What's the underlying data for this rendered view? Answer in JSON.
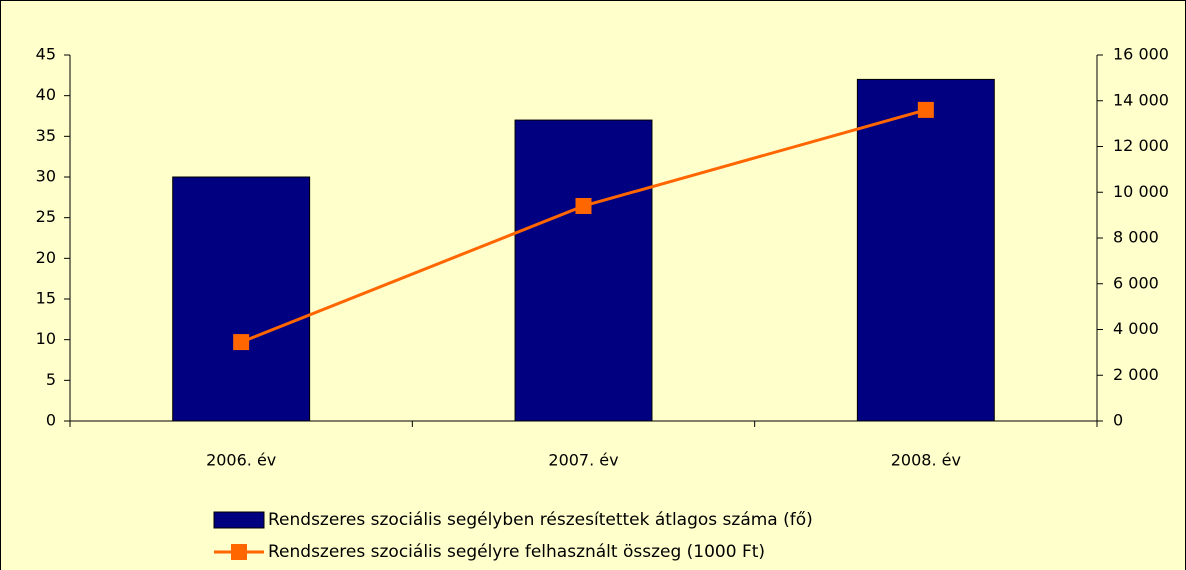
{
  "chart_data": {
    "type": "bar",
    "categories": [
      "2006. év",
      "2007. év",
      "2008. év"
    ],
    "series": [
      {
        "name": "Rendszeres szociális segélyben részesítettek átlagos száma (fő)",
        "color": "#000080",
        "values": [
          30,
          37,
          42
        ]
      },
      {
        "name": "Rendszeres szociális segélyre felhasznált összeg (1000 Ft)",
        "color": "#ff6600",
        "values": [
          3450,
          9400,
          13600
        ],
        "axis": "y2",
        "type": "line"
      }
    ],
    "ylim": [
      0,
      45
    ],
    "yticks": [
      0,
      5,
      10,
      15,
      20,
      25,
      30,
      35,
      40,
      45
    ],
    "y2lim": [
      0,
      16000
    ],
    "y2ticks": [
      0,
      {
        "value": 2000,
        "label": "2 000"
      },
      {
        "value": 4000,
        "label": "4 000"
      },
      {
        "value": 6000,
        "label": "6 000"
      },
      {
        "value": 8000,
        "label": "8 000"
      },
      {
        "value": 10000,
        "label": "10 000"
      },
      {
        "value": 12000,
        "label": "12 000"
      },
      {
        "value": 14000,
        "label": "14 000"
      },
      {
        "value": 16000,
        "label": "16 000"
      }
    ],
    "grid": false
  }
}
